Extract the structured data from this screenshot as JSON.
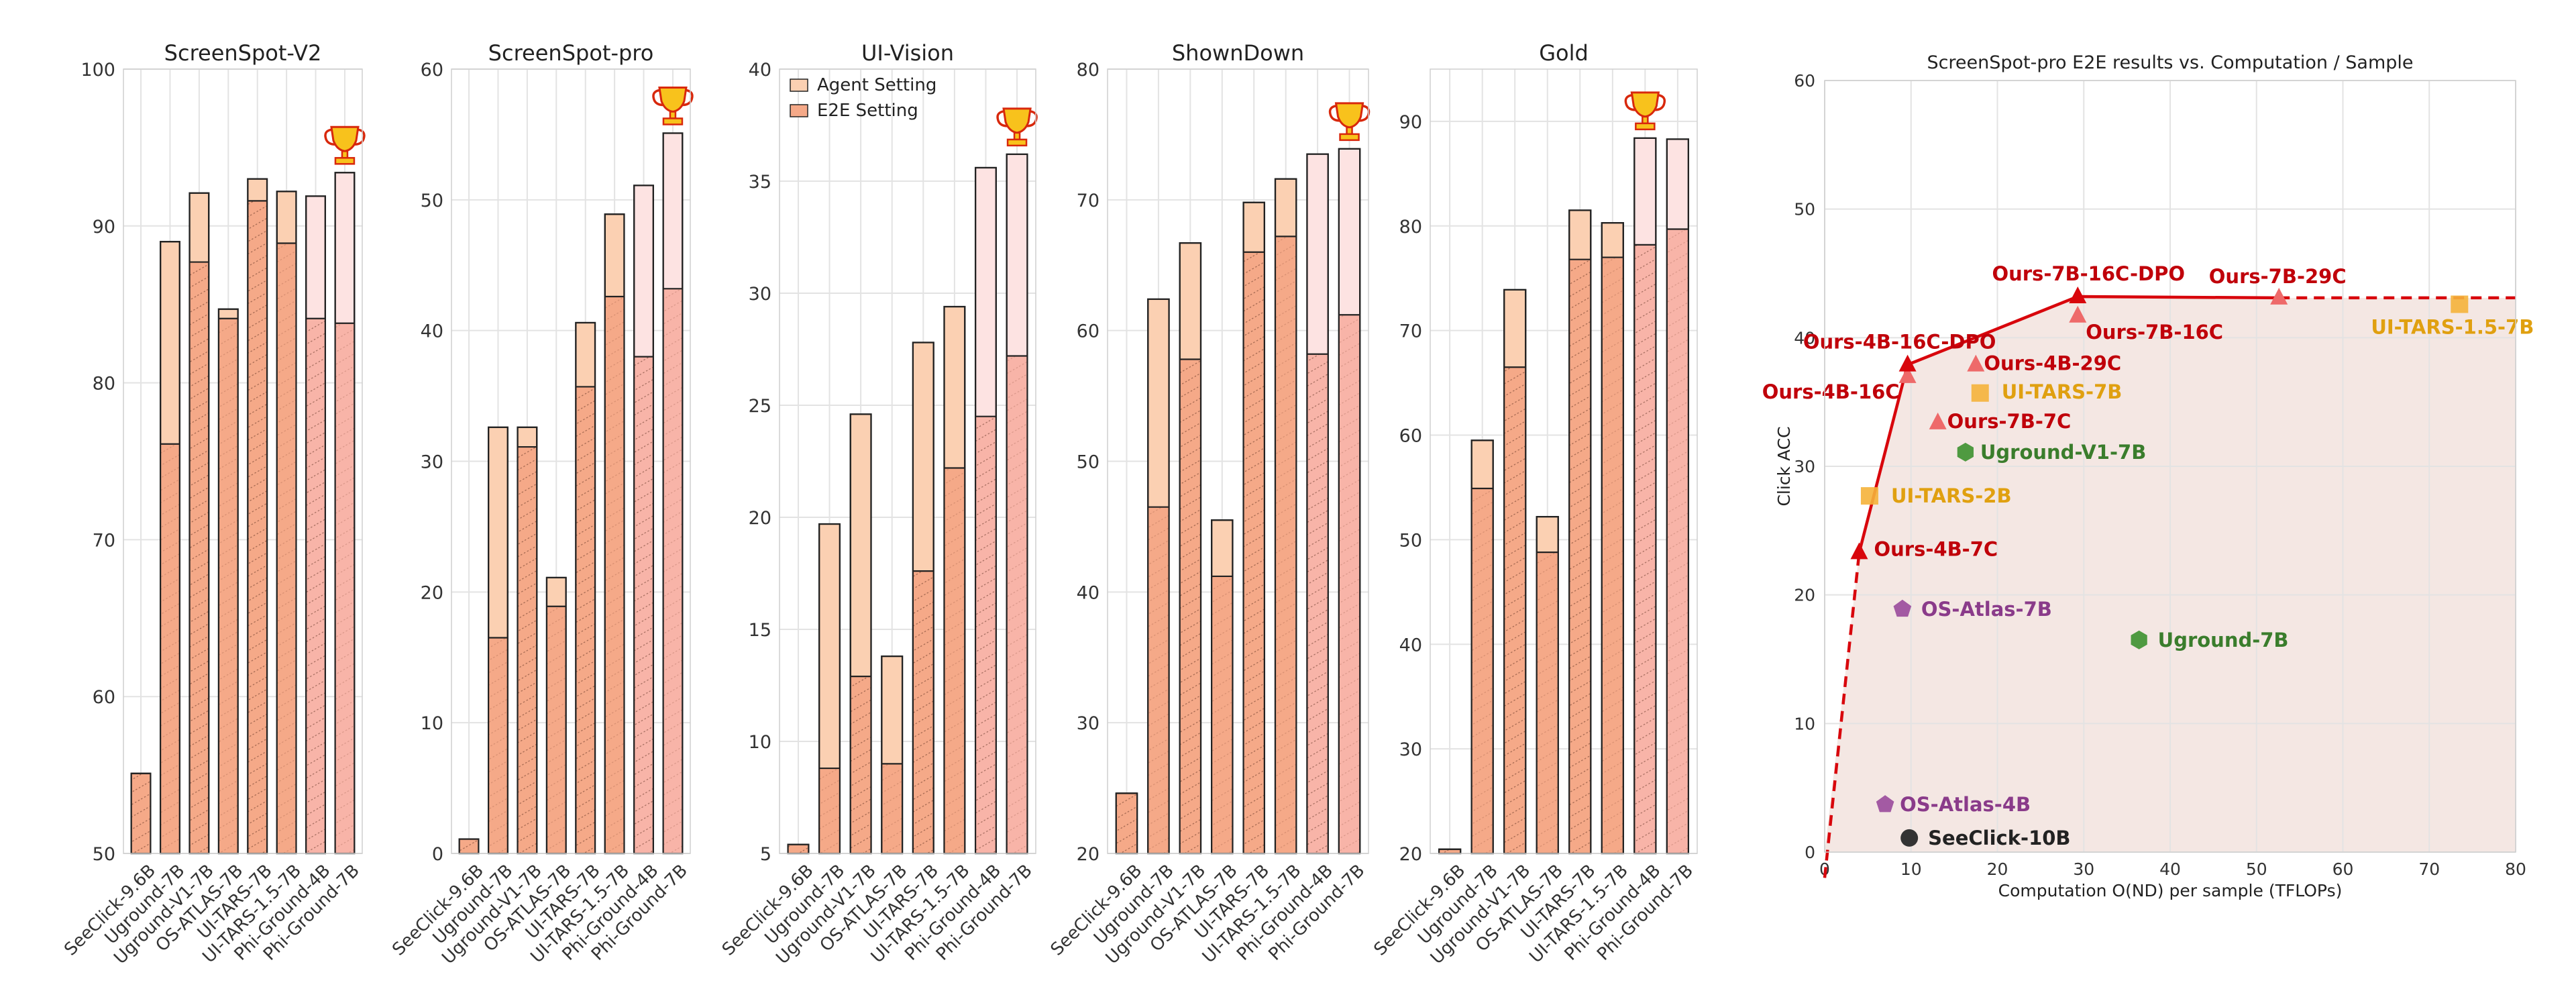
{
  "colors": {
    "agent_fill": "#fbd0b2",
    "e2e_fill": "#f5a988",
    "phi_agent_fill": "#fde3e2",
    "phi_e2e_fill": "#f8b4a8",
    "grid": "#e3e3e3",
    "panel_bg": "#eaeaf2",
    "frontier": "#d8060c",
    "shade": "#f4e7e3"
  },
  "legend": {
    "agent": "Agent Setting",
    "e2e": "E2E Setting"
  },
  "award_icon": "trophy-icon",
  "chart_data": [
    {
      "type": "bar",
      "title": "ScreenSpot-V2",
      "ylim": [
        50,
        100
      ],
      "yticks": [
        50,
        60,
        70,
        80,
        90,
        100
      ],
      "categories": [
        "SeeClick-9.6B",
        "Uground-7B",
        "Uground-V1-7B",
        "OS-ATLAS-7B",
        "UI-TARS-7B",
        "UI-TARS-1.5-7B",
        "Phi-Ground-4B",
        "Phi-Ground-7B"
      ],
      "series": [
        {
          "name": "Agent Setting",
          "values": [
            55.1,
            89.0,
            92.1,
            84.7,
            93.0,
            92.2,
            91.9,
            93.4
          ]
        },
        {
          "name": "E2E Setting",
          "values": [
            55.1,
            76.1,
            87.7,
            84.1,
            91.6,
            88.9,
            84.1,
            83.8
          ]
        }
      ],
      "best_index": 7
    },
    {
      "type": "bar",
      "title": "ScreenSpot-pro",
      "ylim": [
        0,
        60
      ],
      "yticks": [
        0,
        10,
        20,
        30,
        40,
        50,
        60
      ],
      "categories": [
        "SeeClick-9.6B",
        "Uground-7B",
        "Uground-V1-7B",
        "OS-ATLAS-7B",
        "UI-TARS-7B",
        "UI-TARS-1.5-7B",
        "Phi-Ground-4B",
        "Phi-Ground-7B"
      ],
      "series": [
        {
          "name": "Agent Setting",
          "values": [
            1.1,
            32.6,
            32.6,
            21.1,
            40.6,
            48.9,
            51.1,
            55.1
          ]
        },
        {
          "name": "E2E Setting",
          "values": [
            1.1,
            16.5,
            31.1,
            18.9,
            35.7,
            42.6,
            38.0,
            43.2
          ]
        }
      ],
      "best_index": 7
    },
    {
      "type": "bar",
      "title": "UI-Vision",
      "ylim": [
        5,
        40
      ],
      "yticks": [
        5,
        10,
        15,
        20,
        25,
        30,
        35,
        40
      ],
      "categories": [
        "SeeClick-9.6B",
        "Uground-7B",
        "Uground-V1-7B",
        "OS-ATLAS-7B",
        "UI-TARS-7B",
        "UI-TARS-1.5-7B",
        "Phi-Ground-4B",
        "Phi-Ground-7B"
      ],
      "series": [
        {
          "name": "Agent Setting",
          "values": [
            5.4,
            19.7,
            24.6,
            13.8,
            27.8,
            29.4,
            35.6,
            36.2
          ]
        },
        {
          "name": "E2E Setting",
          "values": [
            5.4,
            8.8,
            12.9,
            9.0,
            17.6,
            22.2,
            24.5,
            27.2
          ]
        }
      ],
      "best_index": 7
    },
    {
      "type": "bar",
      "title": "ShownDown",
      "ylim": [
        20,
        80
      ],
      "yticks": [
        20,
        30,
        40,
        50,
        60,
        70,
        80
      ],
      "categories": [
        "SeeClick-9.6B",
        "Uground-7B",
        "Uground-V1-7B",
        "OS-ATLAS-7B",
        "UI-TARS-7B",
        "UI-TARS-1.5-7B",
        "Phi-Ground-4B",
        "Phi-Ground-7B"
      ],
      "series": [
        {
          "name": "Agent Setting",
          "values": [
            24.6,
            62.4,
            66.7,
            45.5,
            69.8,
            71.6,
            73.5,
            73.9
          ]
        },
        {
          "name": "E2E Setting",
          "values": [
            24.6,
            46.5,
            57.8,
            41.2,
            66.0,
            67.2,
            58.2,
            61.2
          ]
        }
      ],
      "best_index": 7
    },
    {
      "type": "bar",
      "title": "Gold",
      "ylim": [
        20,
        95
      ],
      "yticks": [
        20,
        30,
        40,
        50,
        60,
        70,
        80,
        90
      ],
      "categories": [
        "SeeClick-9.6B",
        "Uground-7B",
        "Uground-V1-7B",
        "OS-ATLAS-7B",
        "UI-TARS-7B",
        "UI-TARS-1.5-7B",
        "Phi-Ground-4B",
        "Phi-Ground-7B"
      ],
      "series": [
        {
          "name": "Agent Setting",
          "values": [
            20.4,
            59.5,
            73.9,
            52.2,
            81.5,
            80.3,
            88.4,
            88.3
          ]
        },
        {
          "name": "E2E Setting",
          "values": [
            20.4,
            54.9,
            66.5,
            48.8,
            76.8,
            77.0,
            78.2,
            79.7
          ]
        }
      ],
      "best_index": 6
    },
    {
      "type": "scatter",
      "title": "ScreenSpot-pro E2E results vs. Computation / Sample",
      "xlabel": "Computation O(ND) per sample (TFLOPs)",
      "ylabel": "Click ACC",
      "xlim": [
        0,
        80
      ],
      "ylim": [
        0,
        60
      ],
      "xticks": [
        0,
        10,
        20,
        30,
        40,
        50,
        60,
        70,
        80
      ],
      "yticks": [
        0,
        10,
        20,
        30,
        40,
        50,
        60
      ],
      "frontier": [
        {
          "x": 4.0,
          "y": 23.3
        },
        {
          "x": 9.6,
          "y": 37.9
        },
        {
          "x": 29.3,
          "y": 43.2
        },
        {
          "x": 52.6,
          "y": 43.1
        }
      ],
      "frontier_start": {
        "x": 0,
        "y": -2
      },
      "frontier_end": {
        "x": 80,
        "y": 43.1
      },
      "points": [
        {
          "label": "Ours-4B-7C",
          "x": 4.0,
          "y": 23.3,
          "marker": "triangle",
          "color": "#d8060c",
          "text_color": "#c0000a"
        },
        {
          "label": "Ours-4B-16C",
          "x": 9.6,
          "y": 37.0,
          "marker": "triangle",
          "color": "#ee6a6a",
          "text_color": "#c0000a"
        },
        {
          "label": "Ours-4B-16C-DPO",
          "x": 9.6,
          "y": 37.9,
          "marker": "triangle",
          "color": "#d8060c",
          "text_color": "#c0000a"
        },
        {
          "label": "Ours-7B-7C",
          "x": 13.1,
          "y": 33.4,
          "marker": "triangle",
          "color": "#ee6a6a",
          "text_color": "#c0000a"
        },
        {
          "label": "Ours-4B-29C",
          "x": 17.5,
          "y": 37.9,
          "marker": "triangle",
          "color": "#ee6a6a",
          "text_color": "#c0000a"
        },
        {
          "label": "Ours-7B-16C",
          "x": 29.3,
          "y": 41.7,
          "marker": "triangle",
          "color": "#ee6a6a",
          "text_color": "#c0000a"
        },
        {
          "label": "Ours-7B-16C-DPO",
          "x": 29.3,
          "y": 43.2,
          "marker": "triangle",
          "color": "#d8060c",
          "text_color": "#c0000a"
        },
        {
          "label": "Ours-7B-29C",
          "x": 52.6,
          "y": 43.1,
          "marker": "triangle",
          "color": "#ee6a6a",
          "text_color": "#c0000a"
        },
        {
          "label": "UI-TARS-1.5-7B",
          "x": 73.5,
          "y": 42.6,
          "marker": "square",
          "color": "#f5b23a",
          "text_color": "#e0a010"
        },
        {
          "label": "UI-TARS-7B",
          "x": 18.0,
          "y": 35.7,
          "marker": "square",
          "color": "#f5b23a",
          "text_color": "#e0a010"
        },
        {
          "label": "UI-TARS-2B",
          "x": 5.2,
          "y": 27.7,
          "marker": "square",
          "color": "#f5b23a",
          "text_color": "#e0a010"
        },
        {
          "label": "Uground-V1-7B",
          "x": 16.3,
          "y": 31.1,
          "marker": "hexagon",
          "color": "#4f9a41",
          "text_color": "#3a7d2c"
        },
        {
          "label": "Uground-7B",
          "x": 36.4,
          "y": 16.5,
          "marker": "hexagon",
          "color": "#4f9a41",
          "text_color": "#3a7d2c"
        },
        {
          "label": "OS-Atlas-7B",
          "x": 9.0,
          "y": 18.9,
          "marker": "pentagon",
          "color": "#a35aa3",
          "text_color": "#8a3b8a"
        },
        {
          "label": "OS-Atlas-4B",
          "x": 7.0,
          "y": 3.7,
          "marker": "pentagon",
          "color": "#a35aa3",
          "text_color": "#8a3b8a"
        },
        {
          "label": "SeeClick-10B",
          "x": 9.8,
          "y": 1.1,
          "marker": "circle",
          "color": "#333333",
          "text_color": "#222222"
        }
      ]
    }
  ]
}
